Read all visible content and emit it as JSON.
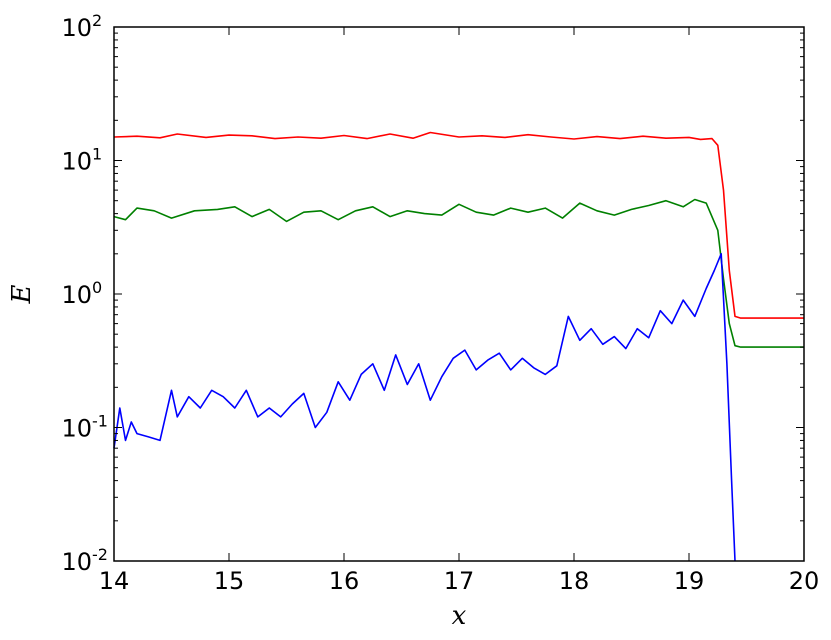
{
  "chart_data": {
    "type": "line",
    "title": "",
    "xlabel": "x",
    "ylabel": "E",
    "xlim": [
      14,
      20
    ],
    "ylim": [
      0.01,
      100
    ],
    "yscale": "log",
    "grid": false,
    "legend": "none",
    "x_ticks": [
      "14",
      "15",
      "16",
      "17",
      "18",
      "19",
      "20"
    ],
    "y_ticks": [
      {
        "base": "10",
        "exp": "-2"
      },
      {
        "base": "10",
        "exp": "-1"
      },
      {
        "base": "10",
        "exp": "0"
      },
      {
        "base": "10",
        "exp": "1"
      },
      {
        "base": "10",
        "exp": "2"
      }
    ],
    "series": [
      {
        "color": "#ff0000",
        "x": [
          14.0,
          14.2,
          14.4,
          14.55,
          14.8,
          15.0,
          15.2,
          15.4,
          15.6,
          15.8,
          16.0,
          16.2,
          16.4,
          16.6,
          16.75,
          17.0,
          17.2,
          17.4,
          17.6,
          17.8,
          18.0,
          18.2,
          18.4,
          18.6,
          18.8,
          19.0,
          19.1,
          19.2,
          19.25,
          19.3,
          19.35,
          19.4,
          19.45,
          20.0
        ],
        "y": [
          15.0,
          15.2,
          14.8,
          15.8,
          14.9,
          15.5,
          15.3,
          14.6,
          15.0,
          14.7,
          15.4,
          14.6,
          15.8,
          14.7,
          16.2,
          15.0,
          15.3,
          14.9,
          15.6,
          15.0,
          14.5,
          15.1,
          14.6,
          15.2,
          14.7,
          14.9,
          14.4,
          14.6,
          13.0,
          6.0,
          1.5,
          0.68,
          0.66,
          0.66
        ]
      },
      {
        "color": "#008000",
        "x": [
          14.0,
          14.1,
          14.2,
          14.35,
          14.5,
          14.7,
          14.9,
          15.05,
          15.2,
          15.35,
          15.5,
          15.65,
          15.8,
          15.95,
          16.1,
          16.25,
          16.4,
          16.55,
          16.7,
          16.85,
          17.0,
          17.15,
          17.3,
          17.45,
          17.6,
          17.75,
          17.9,
          18.05,
          18.2,
          18.35,
          18.5,
          18.65,
          18.8,
          18.95,
          19.05,
          19.15,
          19.25,
          19.3,
          19.35,
          19.4,
          19.45,
          20.0
        ],
        "y": [
          3.8,
          3.6,
          4.4,
          4.2,
          3.7,
          4.2,
          4.3,
          4.5,
          3.8,
          4.3,
          3.5,
          4.1,
          4.2,
          3.6,
          4.2,
          4.5,
          3.8,
          4.2,
          4.0,
          3.9,
          4.7,
          4.1,
          3.9,
          4.4,
          4.1,
          4.4,
          3.7,
          4.8,
          4.2,
          3.9,
          4.3,
          4.6,
          5.0,
          4.5,
          5.1,
          4.8,
          3.0,
          1.3,
          0.6,
          0.41,
          0.4,
          0.4
        ]
      },
      {
        "color": "#0000ff",
        "x": [
          14.0,
          14.05,
          14.1,
          14.15,
          14.2,
          14.3,
          14.4,
          14.5,
          14.55,
          14.65,
          14.75,
          14.85,
          14.95,
          15.05,
          15.15,
          15.25,
          15.35,
          15.45,
          15.55,
          15.65,
          15.75,
          15.85,
          15.95,
          16.05,
          16.15,
          16.25,
          16.35,
          16.45,
          16.55,
          16.65,
          16.75,
          16.85,
          16.95,
          17.05,
          17.15,
          17.25,
          17.35,
          17.45,
          17.55,
          17.65,
          17.75,
          17.85,
          17.95,
          18.05,
          18.15,
          18.25,
          18.35,
          18.45,
          18.55,
          18.65,
          18.75,
          18.85,
          18.95,
          19.05,
          19.15,
          19.22,
          19.28,
          19.33,
          19.37,
          19.4
        ],
        "y": [
          0.07,
          0.14,
          0.08,
          0.11,
          0.09,
          0.085,
          0.08,
          0.19,
          0.12,
          0.17,
          0.14,
          0.19,
          0.17,
          0.14,
          0.19,
          0.12,
          0.14,
          0.12,
          0.15,
          0.18,
          0.1,
          0.13,
          0.22,
          0.16,
          0.25,
          0.3,
          0.19,
          0.35,
          0.21,
          0.3,
          0.16,
          0.24,
          0.33,
          0.38,
          0.27,
          0.32,
          0.36,
          0.27,
          0.33,
          0.28,
          0.25,
          0.29,
          0.68,
          0.45,
          0.55,
          0.42,
          0.48,
          0.39,
          0.55,
          0.47,
          0.75,
          0.6,
          0.9,
          0.68,
          1.1,
          1.5,
          2.0,
          0.3,
          0.04,
          0.01
        ]
      }
    ]
  }
}
